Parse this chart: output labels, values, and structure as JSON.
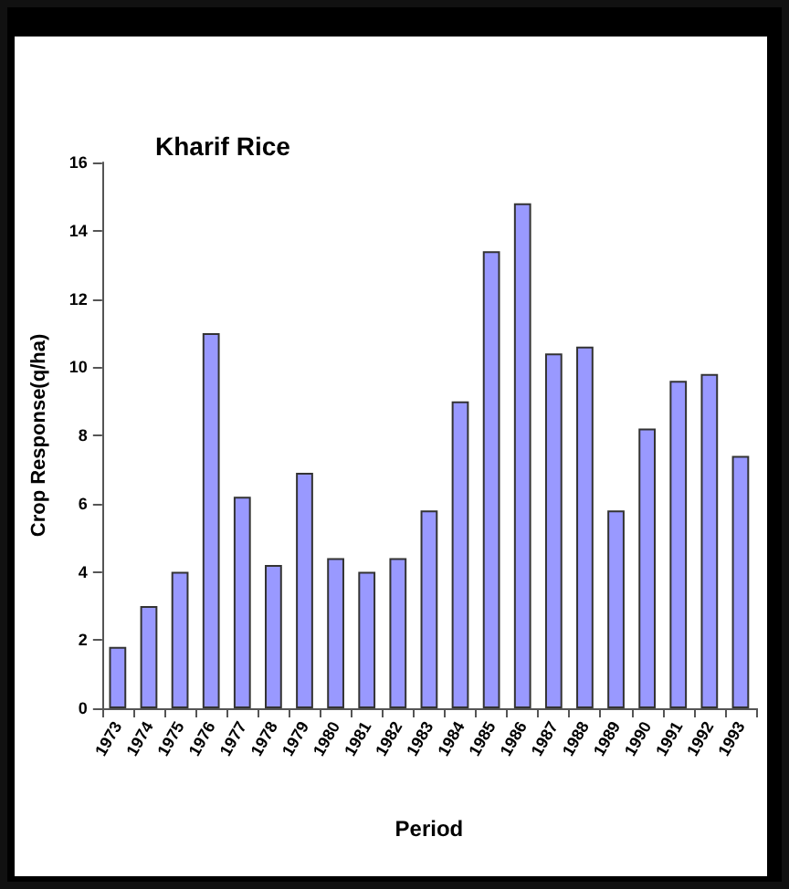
{
  "chart_data": {
    "type": "bar",
    "title": "Kharif Rice",
    "xlabel": "Period",
    "ylabel": "Crop Response(q/ha)",
    "categories": [
      "1973",
      "1974",
      "1975",
      "1976",
      "1977",
      "1978",
      "1979",
      "1980",
      "1981",
      "1982",
      "1983",
      "1984",
      "1985",
      "1986",
      "1987",
      "1988",
      "1989",
      "1990",
      "1991",
      "1992",
      "1993"
    ],
    "values": [
      1.8,
      3,
      4,
      11,
      6.2,
      4.2,
      6.9,
      4.4,
      4,
      4.4,
      5.8,
      9,
      13.4,
      14.8,
      10.4,
      10.6,
      5.8,
      8.2,
      9.6,
      9.8,
      7.4
    ],
    "color": "#9999ff",
    "ylim": [
      0,
      16
    ],
    "yticks": [
      0,
      2,
      4,
      6,
      8,
      10,
      12,
      14,
      16
    ],
    "grid": false
  }
}
